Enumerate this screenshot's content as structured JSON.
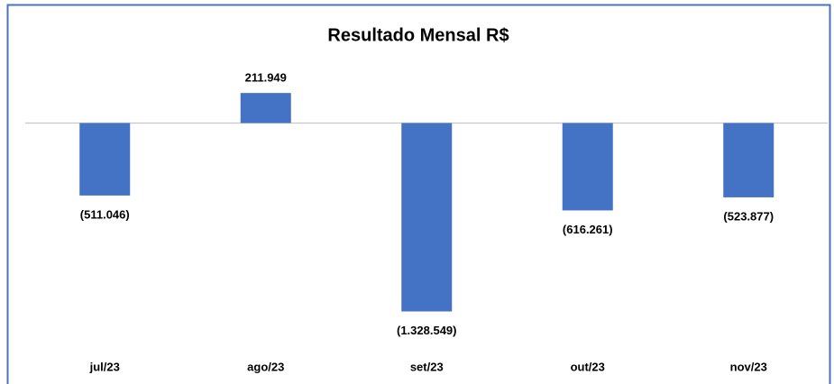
{
  "chart_data": {
    "type": "bar",
    "title": "Resultado Mensal R$",
    "categories": [
      "jul/23",
      "ago/23",
      "set/23",
      "out/23",
      "nov/23"
    ],
    "values": [
      -511046,
      211949,
      -1328549,
      -616261,
      -523877
    ],
    "value_labels": [
      "(511.046)",
      "211.949",
      "(1.328.549)",
      "(616.261)",
      "(523.877)"
    ],
    "color": "#4472c4"
  }
}
